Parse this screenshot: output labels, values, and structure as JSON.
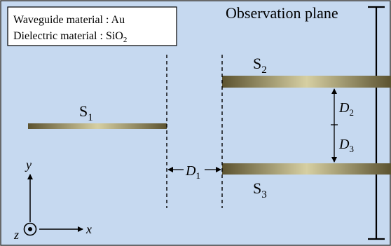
{
  "legend": {
    "line1_label": "Waveguide material",
    "line1_value": "Au",
    "line2_label": "Dielectric  material",
    "line2_value": "SiO",
    "line2_value_sub": "2"
  },
  "observation_plane": "Observation plane",
  "waveguides": {
    "s1": {
      "base": "S",
      "sub": "1"
    },
    "s2": {
      "base": "S",
      "sub": "2"
    },
    "s3": {
      "base": "S",
      "sub": "3"
    }
  },
  "dimensions": {
    "d1": {
      "base": "D",
      "sub": "1"
    },
    "d2": {
      "base": "D",
      "sub": "2"
    },
    "d3": {
      "base": "D",
      "sub": "3"
    }
  },
  "axes": {
    "x": "x",
    "y": "y",
    "z": "z"
  },
  "colors": {
    "background": "#c6d9f0",
    "border": "#3a3a3a",
    "waveguide_dark": "#5c5330",
    "waveguide_light": "#d6cfa2",
    "ink": "#000000"
  }
}
